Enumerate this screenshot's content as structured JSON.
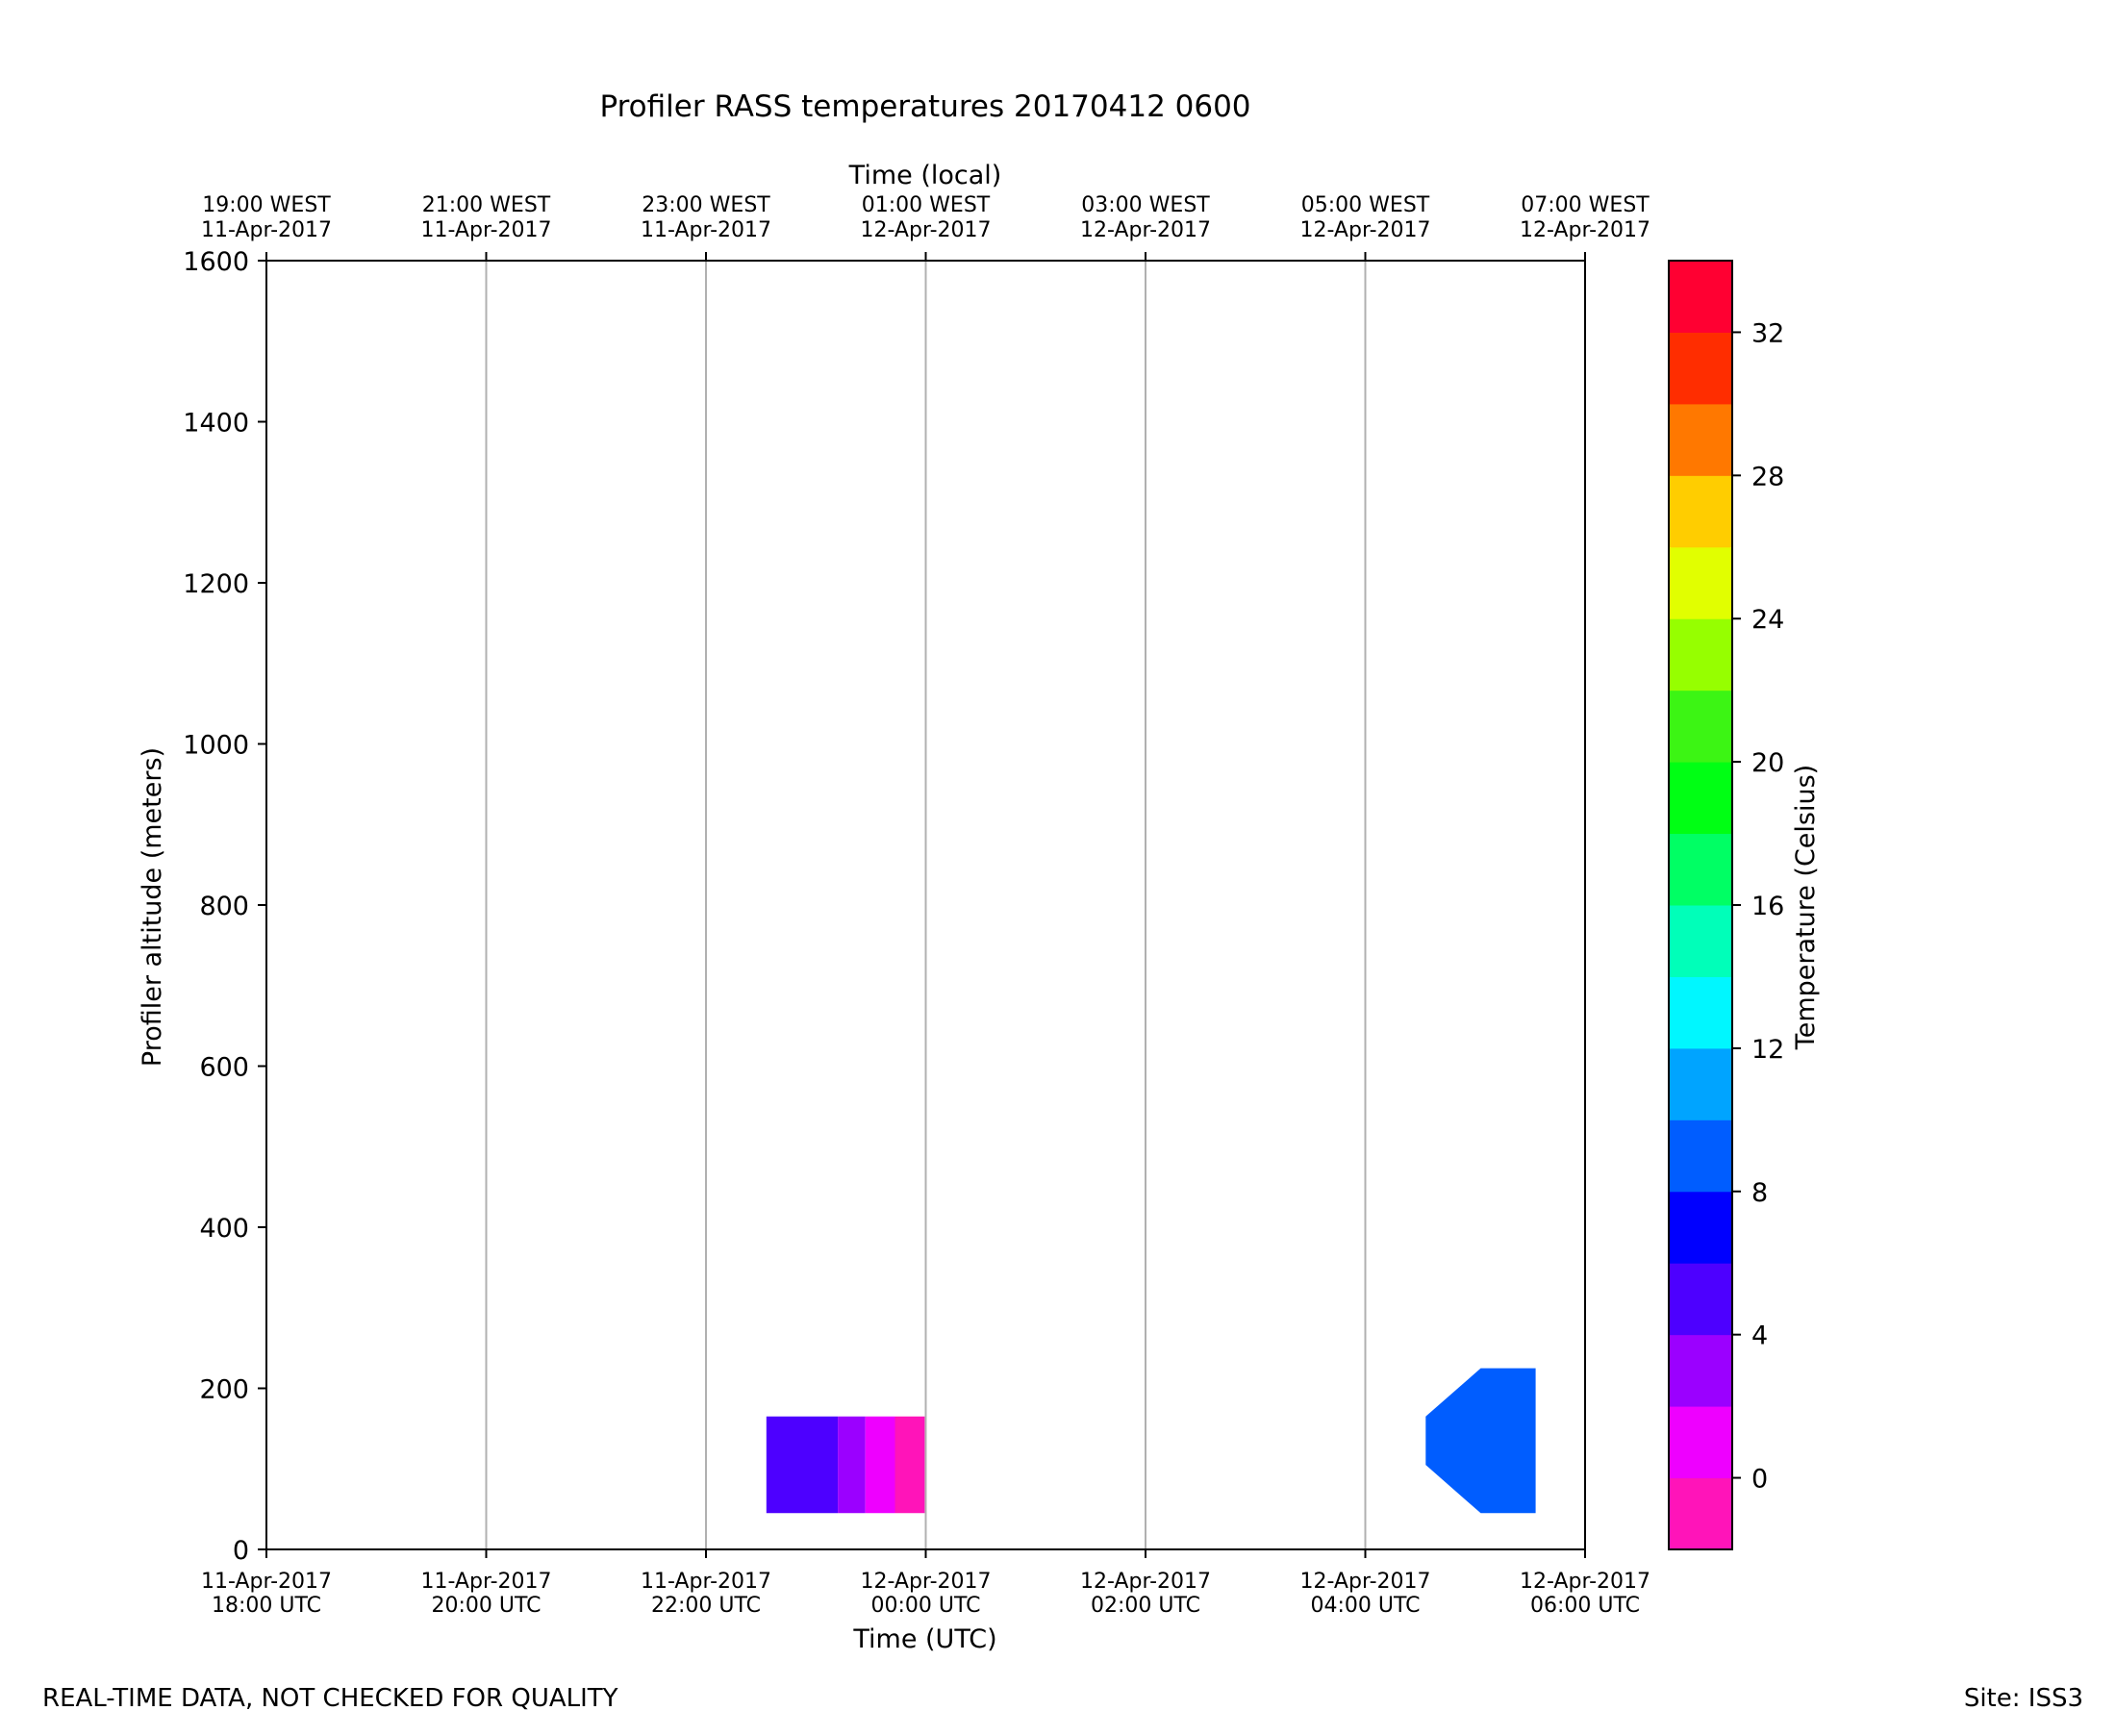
{
  "chart_data": {
    "type": "heatmap",
    "title": "Profiler RASS temperatures 20170412 0600",
    "xlabel": "Time (UTC)",
    "x2label": "Time (local)",
    "ylabel": "Profiler altitude (meters)",
    "xlim": [
      0,
      12
    ],
    "ylim": [
      0,
      1600
    ],
    "grid_x": true,
    "x_ticks": [
      {
        "value": 0,
        "label1": "11-Apr-2017",
        "label2": "18:00 UTC",
        "local1": "19:00 WEST",
        "local2": "11-Apr-2017"
      },
      {
        "value": 2,
        "label1": "11-Apr-2017",
        "label2": "20:00 UTC",
        "local1": "21:00 WEST",
        "local2": "11-Apr-2017"
      },
      {
        "value": 4,
        "label1": "11-Apr-2017",
        "label2": "22:00 UTC",
        "local1": "23:00 WEST",
        "local2": "11-Apr-2017"
      },
      {
        "value": 6,
        "label1": "12-Apr-2017",
        "label2": "00:00 UTC",
        "local1": "01:00 WEST",
        "local2": "12-Apr-2017"
      },
      {
        "value": 8,
        "label1": "12-Apr-2017",
        "label2": "02:00 UTC",
        "local1": "03:00 WEST",
        "local2": "12-Apr-2017"
      },
      {
        "value": 10,
        "label1": "12-Apr-2017",
        "label2": "04:00 UTC",
        "local1": "05:00 WEST",
        "local2": "12-Apr-2017"
      },
      {
        "value": 12,
        "label1": "12-Apr-2017",
        "label2": "06:00 UTC",
        "local1": "07:00 WEST",
        "local2": "12-Apr-2017"
      }
    ],
    "y_ticks": [
      0,
      200,
      400,
      600,
      800,
      1000,
      1200,
      1400,
      1600
    ],
    "data_patches": [
      {
        "name": "patch-a-cold",
        "temp": 5,
        "points": [
          [
            4.55,
            45
          ],
          [
            5.2,
            45
          ],
          [
            5.2,
            165
          ],
          [
            4.55,
            165
          ]
        ]
      },
      {
        "name": "patch-a-mid",
        "temp": 3,
        "points": [
          [
            5.2,
            45
          ],
          [
            5.45,
            45
          ],
          [
            5.45,
            165
          ],
          [
            5.2,
            165
          ]
        ]
      },
      {
        "name": "patch-a-warm",
        "temp": 1,
        "points": [
          [
            5.45,
            45
          ],
          [
            5.72,
            45
          ],
          [
            5.72,
            165
          ],
          [
            5.45,
            165
          ]
        ]
      },
      {
        "name": "patch-a-warmest",
        "temp": -1,
        "points": [
          [
            5.72,
            45
          ],
          [
            5.99,
            45
          ],
          [
            5.99,
            165
          ],
          [
            5.72,
            165
          ]
        ]
      },
      {
        "name": "patch-b",
        "temp": 9,
        "points": [
          [
            10.55,
            105
          ],
          [
            11.05,
            45
          ],
          [
            11.55,
            45
          ],
          [
            11.55,
            225
          ],
          [
            11.05,
            225
          ],
          [
            10.55,
            165
          ]
        ]
      }
    ],
    "colorbar": {
      "label": "Temperature (Celsius)",
      "range": [
        -2,
        34
      ],
      "ticks": [
        0,
        4,
        8,
        12,
        16,
        20,
        24,
        28,
        32
      ],
      "bins": [
        {
          "from": -2,
          "to": 0,
          "color": "#ff14b9"
        },
        {
          "from": 0,
          "to": 2,
          "color": "#ee00ff"
        },
        {
          "from": 2,
          "to": 4,
          "color": "#9b00ff"
        },
        {
          "from": 4,
          "to": 6,
          "color": "#4d00ff"
        },
        {
          "from": 6,
          "to": 8,
          "color": "#0000ff"
        },
        {
          "from": 8,
          "to": 10,
          "color": "#005dff"
        },
        {
          "from": 10,
          "to": 12,
          "color": "#00a4ff"
        },
        {
          "from": 12,
          "to": 14,
          "color": "#00f7ff"
        },
        {
          "from": 14,
          "to": 16,
          "color": "#00ffb9"
        },
        {
          "from": 16,
          "to": 18,
          "color": "#00ff64"
        },
        {
          "from": 18,
          "to": 20,
          "color": "#00ff14"
        },
        {
          "from": 20,
          "to": 22,
          "color": "#3cf514"
        },
        {
          "from": 22,
          "to": 24,
          "color": "#96ff00"
        },
        {
          "from": 24,
          "to": 26,
          "color": "#e1ff00"
        },
        {
          "from": 26,
          "to": 28,
          "color": "#ffcd00"
        },
        {
          "from": 28,
          "to": 30,
          "color": "#ff7800"
        },
        {
          "from": 30,
          "to": 32,
          "color": "#ff2d00"
        },
        {
          "from": 32,
          "to": 34,
          "color": "#ff0032"
        }
      ]
    }
  },
  "footer": {
    "note": "REAL-TIME DATA, NOT CHECKED FOR QUALITY",
    "site": "Site: ISS3"
  }
}
